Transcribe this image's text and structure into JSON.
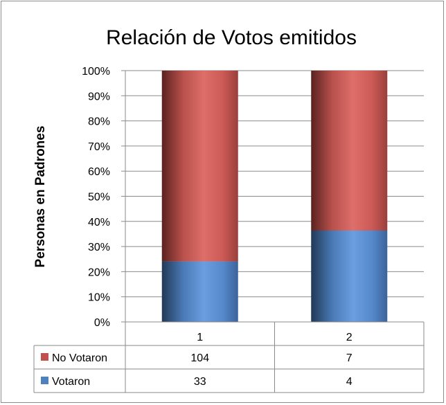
{
  "chart_data": {
    "type": "bar",
    "stacked": "percent",
    "title": "Relación de Votos emitidos",
    "xlabel": "",
    "ylabel": "Personas en Padrones",
    "ylim": [
      0,
      100
    ],
    "y_ticks": [
      "0%",
      "10%",
      "20%",
      "30%",
      "40%",
      "50%",
      "60%",
      "70%",
      "80%",
      "90%",
      "100%"
    ],
    "categories": [
      "1",
      "2"
    ],
    "series": [
      {
        "name": "Votaron",
        "values": [
          33,
          4
        ],
        "color": "#4f81bd"
      },
      {
        "name": "No Votaron",
        "values": [
          104,
          7
        ],
        "color": "#c0504d"
      }
    ],
    "grid": true,
    "legend": "data-table",
    "data_table": true
  }
}
